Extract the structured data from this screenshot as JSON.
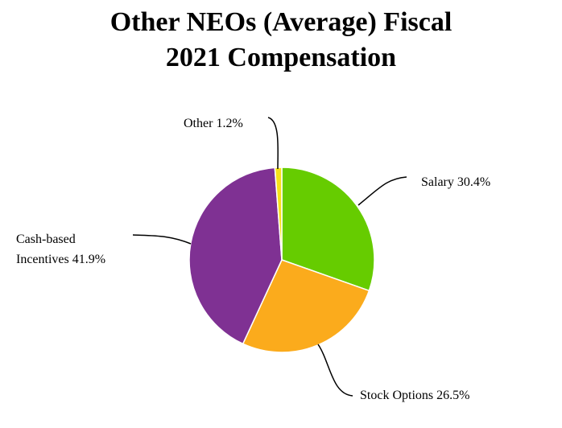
{
  "chart_data": {
    "type": "pie",
    "title": "Other NEOs (Average) Fiscal 2021 Compensation",
    "categories": [
      "Salary",
      "Stock Options",
      "Cash-based Incentives",
      "Other"
    ],
    "values": [
      30.4,
      26.5,
      41.9,
      1.2
    ],
    "value_labels": [
      "30.4%",
      "26.5%",
      "41.9%",
      "1.2%"
    ],
    "colors": [
      "#66cc00",
      "#fbab1c",
      "#7f3193",
      "#f7e11a"
    ]
  }
}
